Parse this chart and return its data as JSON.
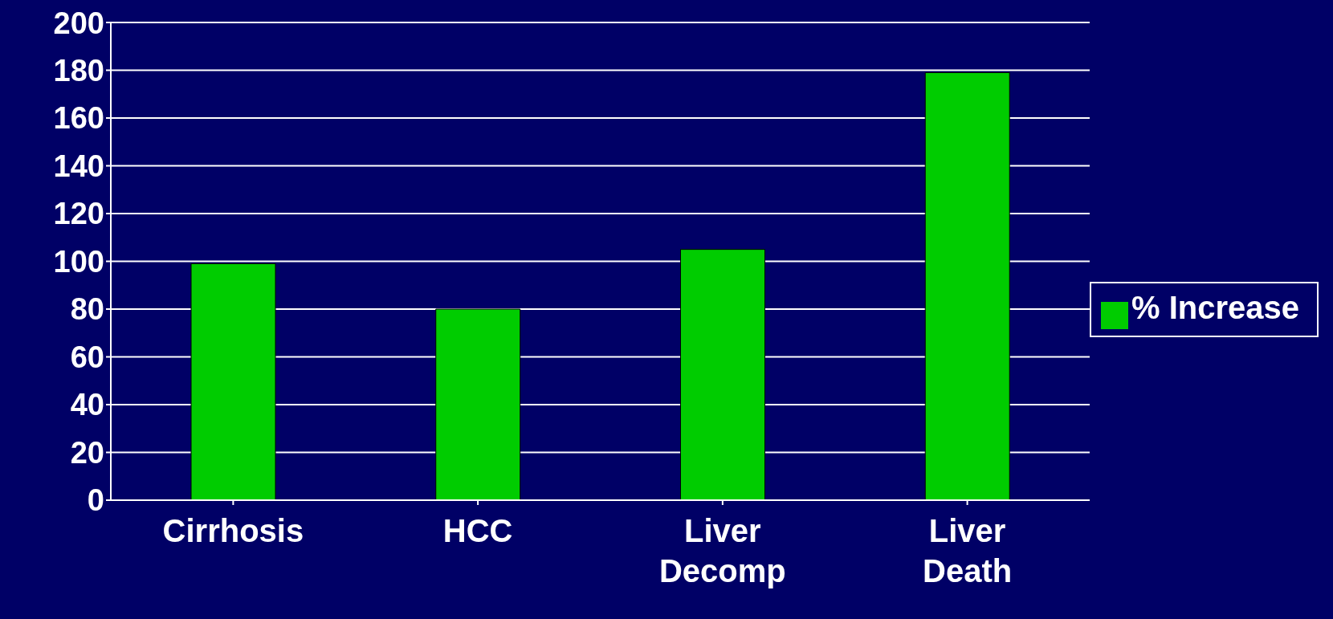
{
  "chart_data": {
    "type": "bar",
    "categories": [
      "Cirrhosis",
      "HCC",
      "Liver Decomp",
      "Liver Death"
    ],
    "series": [
      {
        "name": "% Increase",
        "color": "#00cc00",
        "values": [
          99,
          80,
          105,
          179
        ]
      }
    ],
    "ylim": [
      0,
      200
    ],
    "yticks": [
      0,
      20,
      40,
      60,
      80,
      100,
      120,
      140,
      160,
      180,
      200
    ],
    "grid": "y",
    "legend": "right"
  }
}
